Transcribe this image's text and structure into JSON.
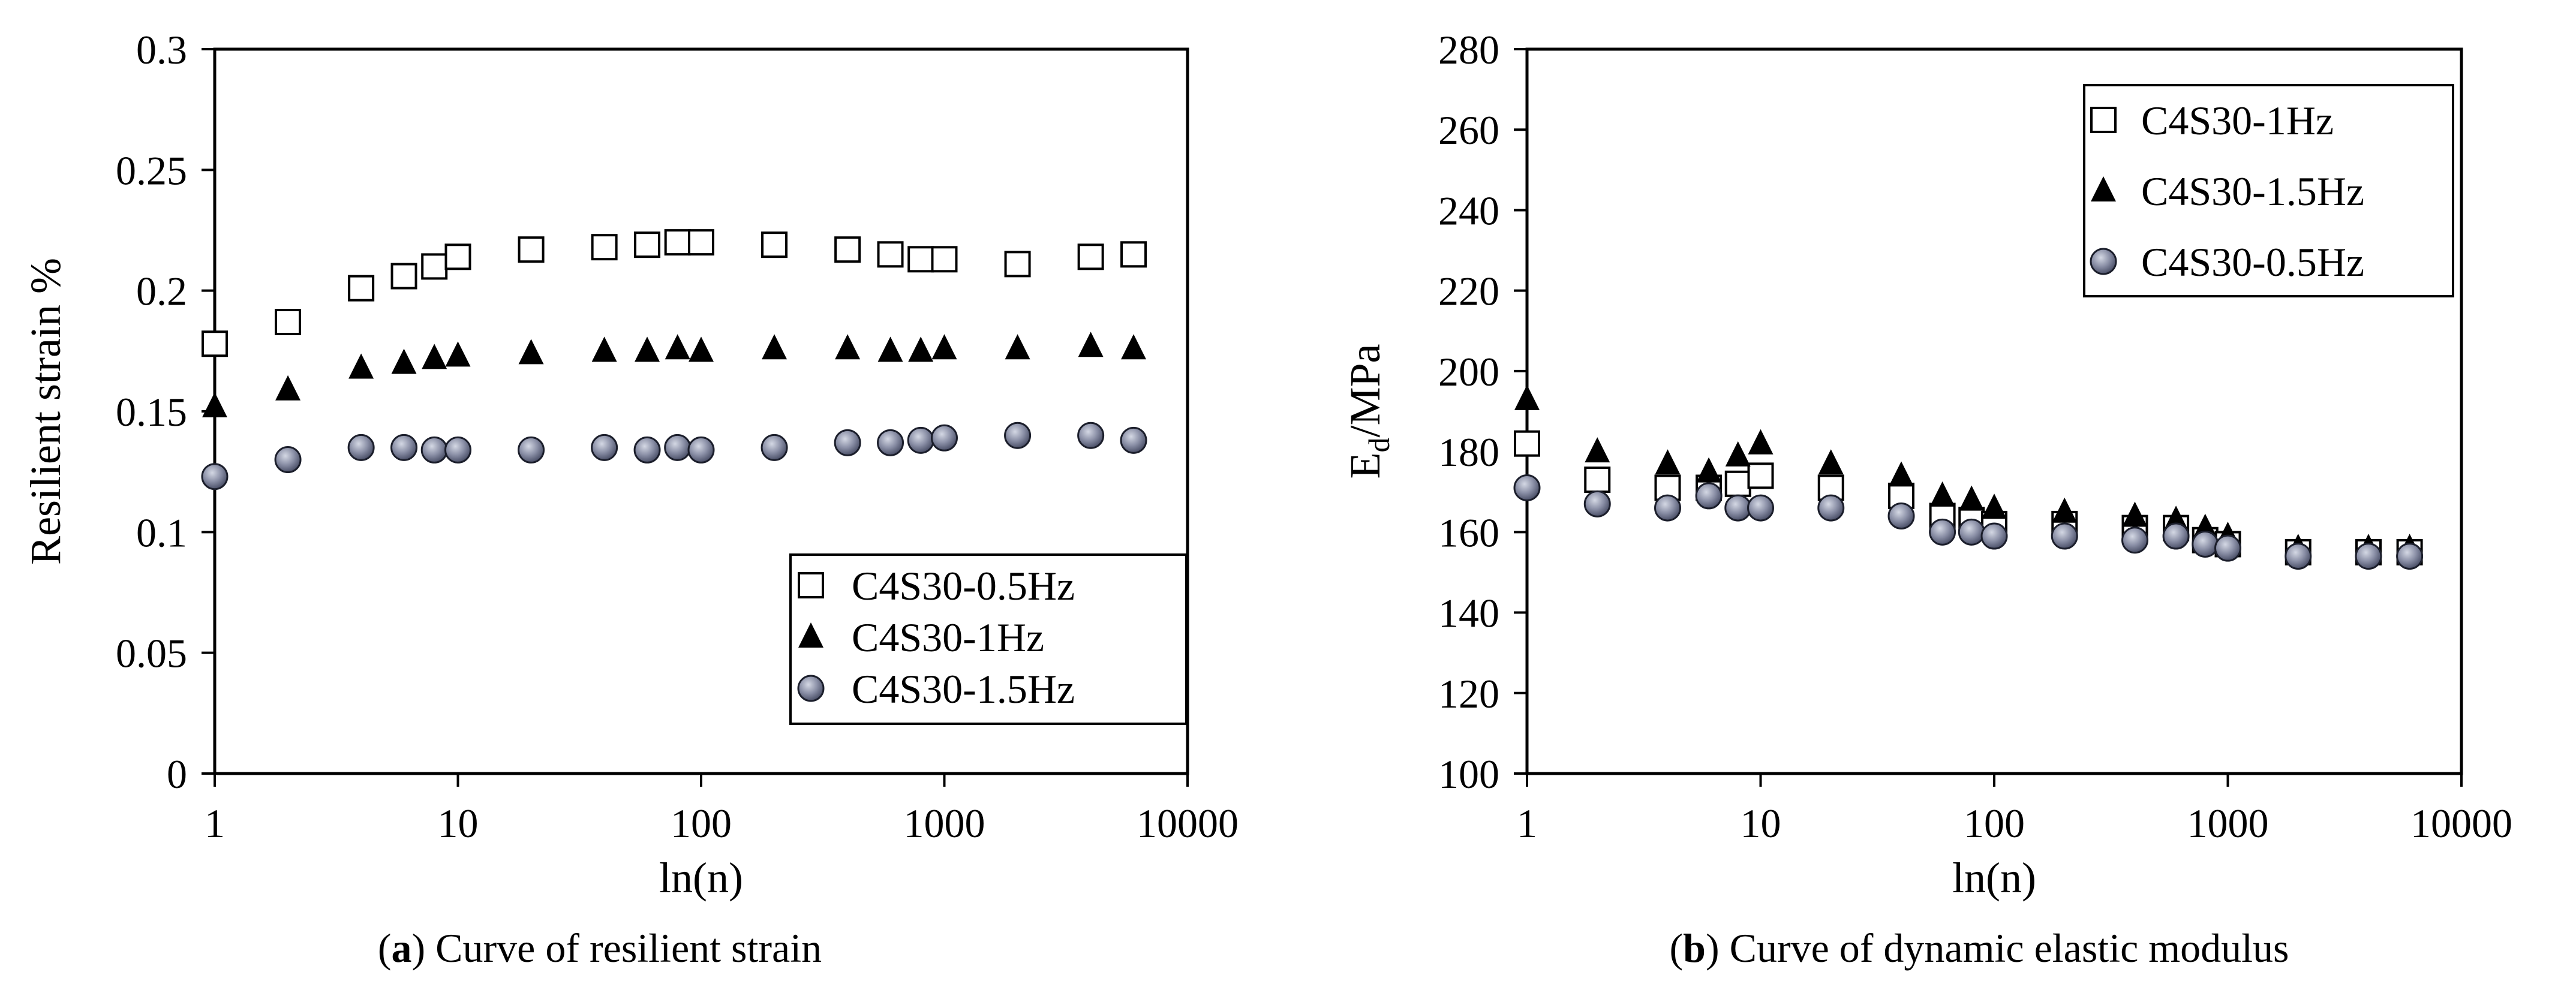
{
  "chart_data": [
    {
      "panel": "a",
      "type": "scatter",
      "caption_letter": "a",
      "caption_text": "Curve of resilient strain",
      "xlabel": "ln(n)",
      "ylabel": "Resilient strain %",
      "xscale": "log",
      "xlim": [
        1,
        10000
      ],
      "ylim": [
        0,
        0.3
      ],
      "xticks": [
        1,
        10,
        100,
        1000,
        10000
      ],
      "xtick_labels": [
        "1",
        "10",
        "100",
        "1000",
        "10000"
      ],
      "yticks": [
        0,
        0.05,
        0.1,
        0.15,
        0.2,
        0.25,
        0.3
      ],
      "ytick_labels": [
        "0",
        "0.05",
        "0.1",
        "0.15",
        "0.2",
        "0.25",
        "0.3"
      ],
      "legend_position": "bottom-right",
      "grid": false,
      "series": [
        {
          "name": "C4S30-0.5Hz",
          "marker": "square",
          "x": [
            1,
            2,
            4,
            6,
            8,
            10,
            20,
            40,
            60,
            80,
            100,
            200,
            400,
            600,
            800,
            1000,
            2000,
            4000,
            6000
          ],
          "y": [
            0.178,
            0.187,
            0.201,
            0.206,
            0.21,
            0.214,
            0.217,
            0.218,
            0.219,
            0.22,
            0.22,
            0.219,
            0.217,
            0.215,
            0.213,
            0.213,
            0.211,
            0.214,
            0.215
          ]
        },
        {
          "name": "C4S30-1Hz",
          "marker": "triangle",
          "x": [
            1,
            2,
            4,
            6,
            8,
            10,
            20,
            40,
            60,
            80,
            100,
            200,
            400,
            600,
            800,
            1000,
            2000,
            4000,
            6000
          ],
          "y": [
            0.152,
            0.159,
            0.168,
            0.17,
            0.172,
            0.173,
            0.174,
            0.175,
            0.175,
            0.176,
            0.175,
            0.176,
            0.176,
            0.175,
            0.175,
            0.176,
            0.176,
            0.177,
            0.176
          ]
        },
        {
          "name": "C4S30-1.5Hz",
          "marker": "circle",
          "x": [
            1,
            2,
            4,
            6,
            8,
            10,
            20,
            40,
            60,
            80,
            100,
            200,
            400,
            600,
            800,
            1000,
            2000,
            4000,
            6000
          ],
          "y": [
            0.123,
            0.13,
            0.135,
            0.135,
            0.134,
            0.134,
            0.134,
            0.135,
            0.134,
            0.135,
            0.134,
            0.135,
            0.137,
            0.137,
            0.138,
            0.139,
            0.14,
            0.14,
            0.138
          ]
        }
      ]
    },
    {
      "panel": "b",
      "type": "scatter",
      "caption_letter": "b",
      "caption_text": "Curve of dynamic elastic modulus",
      "xlabel": "ln(n)",
      "ylabel_main": "E",
      "ylabel_sub": "d",
      "ylabel_rest": "/MPa",
      "xscale": "log",
      "xlim": [
        1,
        10000
      ],
      "ylim": [
        100,
        280
      ],
      "xticks": [
        1,
        10,
        100,
        1000,
        10000
      ],
      "xtick_labels": [
        "1",
        "10",
        "100",
        "1000",
        "10000"
      ],
      "yticks": [
        100,
        120,
        140,
        160,
        180,
        200,
        220,
        240,
        260,
        280
      ],
      "ytick_labels": [
        "100",
        "120",
        "140",
        "160",
        "180",
        "200",
        "220",
        "240",
        "260",
        "280"
      ],
      "legend_position": "top-right",
      "grid": false,
      "series": [
        {
          "name": "C4S30-1Hz",
          "marker": "square",
          "x": [
            1,
            2,
            4,
            6,
            8,
            10,
            20,
            40,
            60,
            80,
            100,
            200,
            400,
            600,
            800,
            1000,
            2000,
            4000,
            6000
          ],
          "y": [
            182,
            173,
            171,
            171,
            172,
            174,
            171,
            169,
            164,
            163,
            162,
            162,
            161,
            161,
            158,
            157,
            155,
            155,
            155
          ]
        },
        {
          "name": "C4S30-1.5Hz",
          "marker": "triangle",
          "x": [
            1,
            2,
            4,
            6,
            8,
            10,
            20,
            40,
            60,
            80,
            100,
            200,
            400,
            600,
            800,
            1000,
            2000,
            4000,
            6000
          ],
          "y": [
            193,
            180,
            177,
            175,
            179,
            182,
            177,
            174,
            169,
            168,
            166,
            165,
            164,
            163,
            161,
            159,
            156,
            156,
            156
          ]
        },
        {
          "name": "C4S30-0.5Hz",
          "marker": "circle",
          "x": [
            1,
            2,
            4,
            6,
            8,
            10,
            20,
            40,
            60,
            80,
            100,
            200,
            400,
            600,
            800,
            1000,
            2000,
            4000,
            6000
          ],
          "y": [
            171,
            167,
            166,
            169,
            166,
            166,
            166,
            164,
            160,
            160,
            159,
            159,
            158,
            159,
            157,
            156,
            154,
            154,
            154
          ]
        }
      ]
    }
  ]
}
